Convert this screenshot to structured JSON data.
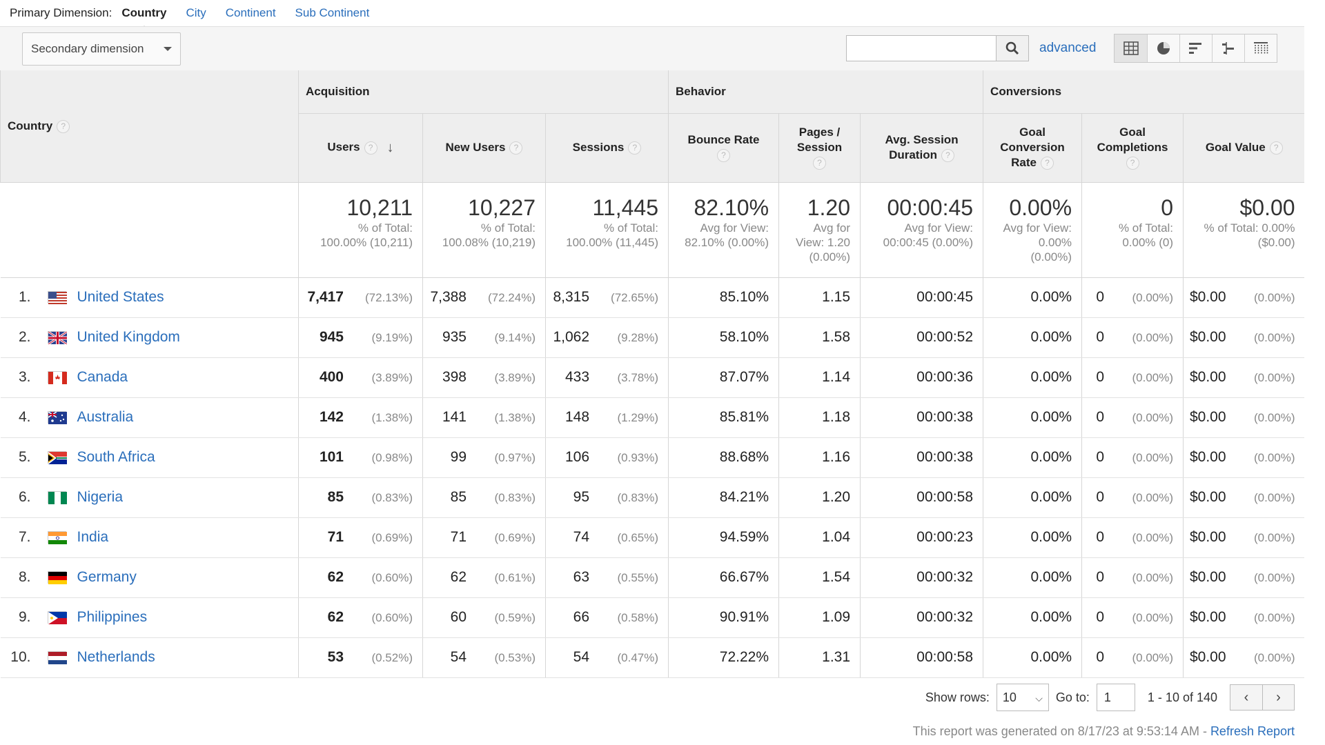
{
  "dimension_bar": {
    "label": "Primary Dimension:",
    "options": [
      "Country",
      "City",
      "Continent",
      "Sub Continent"
    ],
    "active": "Country"
  },
  "toolbar": {
    "secondary_dimension": "Secondary dimension",
    "search_value": "",
    "advanced": "advanced",
    "views": [
      "table-view-icon",
      "pie-view-icon",
      "bar-view-icon",
      "comparison-view-icon",
      "pivot-view-icon"
    ]
  },
  "table": {
    "dimension_header": "Country",
    "groups": [
      "Acquisition",
      "Behavior",
      "Conversions"
    ],
    "columns": {
      "users": "Users",
      "new_users": "New Users",
      "sessions": "Sessions",
      "bounce_rate": "Bounce Rate",
      "pages_session_1": "Pages /",
      "pages_session_2": "Session",
      "avg_dur_1": "Avg. Session",
      "avg_dur_2": "Duration",
      "gcr_1": "Goal",
      "gcr_2": "Conversion",
      "gcr_3": "Rate",
      "gc_1": "Goal",
      "gc_2": "Completions",
      "goal_value": "Goal Value"
    },
    "totals": {
      "users": {
        "value": "10,211",
        "l1": "% of Total:",
        "l2": "100.00% (10,211)"
      },
      "new_users": {
        "value": "10,227",
        "l1": "% of Total:",
        "l2": "100.08% (10,219)"
      },
      "sessions": {
        "value": "11,445",
        "l1": "% of Total:",
        "l2": "100.00% (11,445)"
      },
      "bounce_rate": {
        "value": "82.10%",
        "l1": "Avg for View:",
        "l2": "82.10% (0.00%)"
      },
      "pages": {
        "value": "1.20",
        "l1": "Avg for",
        "l2": "View: 1.20",
        "l3": "(0.00%)"
      },
      "duration": {
        "value": "00:00:45",
        "l1": "Avg for View:",
        "l2": "00:00:45 (0.00%)"
      },
      "gcr": {
        "value": "0.00%",
        "l1": "Avg for View:",
        "l2": "0.00%",
        "l3": "(0.00%)"
      },
      "gc": {
        "value": "0",
        "l1": "% of Total:",
        "l2": "0.00% (0)"
      },
      "goal_value": {
        "value": "$0.00",
        "l1": "% of Total: 0.00%",
        "l2": "($0.00)"
      }
    },
    "rows": [
      {
        "idx": "1.",
        "country": "United States",
        "flag": "us",
        "users": "7,417",
        "users_pct": "(72.13%)",
        "new_users": "7,388",
        "new_users_pct": "(72.24%)",
        "sessions": "8,315",
        "sessions_pct": "(72.65%)",
        "bounce": "85.10%",
        "pages": "1.15",
        "duration": "00:00:45",
        "gcr": "0.00%",
        "gc": "0",
        "gc_pct": "(0.00%)",
        "gv": "$0.00",
        "gv_pct": "(0.00%)"
      },
      {
        "idx": "2.",
        "country": "United Kingdom",
        "flag": "uk",
        "users": "945",
        "users_pct": "(9.19%)",
        "new_users": "935",
        "new_users_pct": "(9.14%)",
        "sessions": "1,062",
        "sessions_pct": "(9.28%)",
        "bounce": "58.10%",
        "pages": "1.58",
        "duration": "00:00:52",
        "gcr": "0.00%",
        "gc": "0",
        "gc_pct": "(0.00%)",
        "gv": "$0.00",
        "gv_pct": "(0.00%)"
      },
      {
        "idx": "3.",
        "country": "Canada",
        "flag": "ca",
        "users": "400",
        "users_pct": "(3.89%)",
        "new_users": "398",
        "new_users_pct": "(3.89%)",
        "sessions": "433",
        "sessions_pct": "(3.78%)",
        "bounce": "87.07%",
        "pages": "1.14",
        "duration": "00:00:36",
        "gcr": "0.00%",
        "gc": "0",
        "gc_pct": "(0.00%)",
        "gv": "$0.00",
        "gv_pct": "(0.00%)"
      },
      {
        "idx": "4.",
        "country": "Australia",
        "flag": "au",
        "users": "142",
        "users_pct": "(1.38%)",
        "new_users": "141",
        "new_users_pct": "(1.38%)",
        "sessions": "148",
        "sessions_pct": "(1.29%)",
        "bounce": "85.81%",
        "pages": "1.18",
        "duration": "00:00:38",
        "gcr": "0.00%",
        "gc": "0",
        "gc_pct": "(0.00%)",
        "gv": "$0.00",
        "gv_pct": "(0.00%)"
      },
      {
        "idx": "5.",
        "country": "South Africa",
        "flag": "za",
        "users": "101",
        "users_pct": "(0.98%)",
        "new_users": "99",
        "new_users_pct": "(0.97%)",
        "sessions": "106",
        "sessions_pct": "(0.93%)",
        "bounce": "88.68%",
        "pages": "1.16",
        "duration": "00:00:38",
        "gcr": "0.00%",
        "gc": "0",
        "gc_pct": "(0.00%)",
        "gv": "$0.00",
        "gv_pct": "(0.00%)"
      },
      {
        "idx": "6.",
        "country": "Nigeria",
        "flag": "ng",
        "users": "85",
        "users_pct": "(0.83%)",
        "new_users": "85",
        "new_users_pct": "(0.83%)",
        "sessions": "95",
        "sessions_pct": "(0.83%)",
        "bounce": "84.21%",
        "pages": "1.20",
        "duration": "00:00:58",
        "gcr": "0.00%",
        "gc": "0",
        "gc_pct": "(0.00%)",
        "gv": "$0.00",
        "gv_pct": "(0.00%)"
      },
      {
        "idx": "7.",
        "country": "India",
        "flag": "in",
        "users": "71",
        "users_pct": "(0.69%)",
        "new_users": "71",
        "new_users_pct": "(0.69%)",
        "sessions": "74",
        "sessions_pct": "(0.65%)",
        "bounce": "94.59%",
        "pages": "1.04",
        "duration": "00:00:23",
        "gcr": "0.00%",
        "gc": "0",
        "gc_pct": "(0.00%)",
        "gv": "$0.00",
        "gv_pct": "(0.00%)"
      },
      {
        "idx": "8.",
        "country": "Germany",
        "flag": "de",
        "users": "62",
        "users_pct": "(0.60%)",
        "new_users": "62",
        "new_users_pct": "(0.61%)",
        "sessions": "63",
        "sessions_pct": "(0.55%)",
        "bounce": "66.67%",
        "pages": "1.54",
        "duration": "00:00:32",
        "gcr": "0.00%",
        "gc": "0",
        "gc_pct": "(0.00%)",
        "gv": "$0.00",
        "gv_pct": "(0.00%)"
      },
      {
        "idx": "9.",
        "country": "Philippines",
        "flag": "ph",
        "users": "62",
        "users_pct": "(0.60%)",
        "new_users": "60",
        "new_users_pct": "(0.59%)",
        "sessions": "66",
        "sessions_pct": "(0.58%)",
        "bounce": "90.91%",
        "pages": "1.09",
        "duration": "00:00:32",
        "gcr": "0.00%",
        "gc": "0",
        "gc_pct": "(0.00%)",
        "gv": "$0.00",
        "gv_pct": "(0.00%)"
      },
      {
        "idx": "10.",
        "country": "Netherlands",
        "flag": "nl",
        "users": "53",
        "users_pct": "(0.52%)",
        "new_users": "54",
        "new_users_pct": "(0.53%)",
        "sessions": "54",
        "sessions_pct": "(0.47%)",
        "bounce": "72.22%",
        "pages": "1.31",
        "duration": "00:00:58",
        "gcr": "0.00%",
        "gc": "0",
        "gc_pct": "(0.00%)",
        "gv": "$0.00",
        "gv_pct": "(0.00%)"
      }
    ]
  },
  "footer": {
    "show_rows_label": "Show rows:",
    "show_rows_value": "10",
    "goto_label": "Go to:",
    "goto_value": "1",
    "range": "1 - 10 of 140",
    "generated": "This report was generated on 8/17/23 at 9:53:14 AM - ",
    "refresh": "Refresh Report"
  },
  "colors": {
    "link": "#2a6ebb",
    "header_bg": "#eeeeee",
    "muted": "#888888"
  }
}
